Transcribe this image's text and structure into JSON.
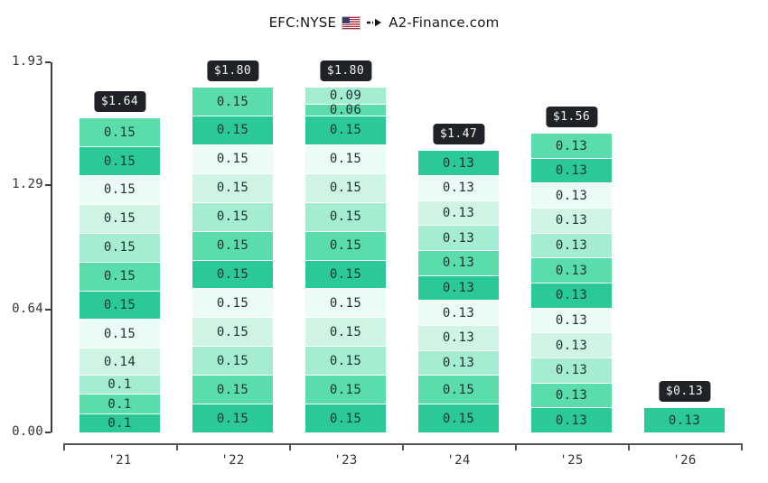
{
  "title": {
    "ticker": "EFC:NYSE",
    "site": "A2-Finance.com",
    "flag_icon": "us-flag",
    "arrow_icon": "arrow-right"
  },
  "colors": {
    "segment_text": "#1c3136",
    "total_label_bg": "#1f2227",
    "total_label_text": "#f5f5f5",
    "y_axis": "#3c3c3c",
    "x_axis": "#555555",
    "tick_label": "#333333"
  },
  "chart_data": {
    "type": "bar",
    "stacked": true,
    "title": "EFC:NYSE 🇺🇸 ➡ A2-Finance.com",
    "xlabel": "",
    "ylabel": "",
    "grid": false,
    "legend": false,
    "ylim": [
      0,
      1.93
    ],
    "yticks": [
      {
        "value": 0.0,
        "label": "0.00"
      },
      {
        "value": 0.64,
        "label": "0.64"
      },
      {
        "value": 1.29,
        "label": "1.29"
      },
      {
        "value": 1.93,
        "label": "1.93"
      }
    ],
    "categories": [
      "'21",
      "'22",
      "'23",
      "'24",
      "'25",
      "'26"
    ],
    "palette_bottom_up_cycle": [
      "#2cc998",
      "#5adcab",
      "#a4edd0",
      "#cef5e4",
      "#eafcf4"
    ],
    "bars": [
      {
        "category": "'21",
        "total": 1.64,
        "total_label": "$1.64",
        "segments": [
          0.1,
          0.1,
          0.1,
          0.14,
          0.15,
          0.15,
          0.15,
          0.15,
          0.15,
          0.15,
          0.15,
          0.15
        ],
        "segment_labels": [
          "0.1",
          "0.1",
          "0.1",
          "0.14",
          "0.15",
          "0.15",
          "0.15",
          "0.15",
          "0.15",
          "0.15",
          "0.15",
          "0.15"
        ]
      },
      {
        "category": "'22",
        "total": 1.8,
        "total_label": "$1.80",
        "segments": [
          0.15,
          0.15,
          0.15,
          0.15,
          0.15,
          0.15,
          0.15,
          0.15,
          0.15,
          0.15,
          0.15,
          0.15
        ],
        "segment_labels": [
          "0.15",
          "0.15",
          "0.15",
          "0.15",
          "0.15",
          "0.15",
          "0.15",
          "0.15",
          "0.15",
          "0.15",
          "0.15",
          "0.15"
        ]
      },
      {
        "category": "'23",
        "total": 1.8,
        "total_label": "$1.80",
        "segments": [
          0.15,
          0.15,
          0.15,
          0.15,
          0.15,
          0.15,
          0.15,
          0.15,
          0.15,
          0.15,
          0.15,
          0.06,
          0.09
        ],
        "segment_labels": [
          "0.15",
          "0.15",
          "0.15",
          "0.15",
          "0.15",
          "0.15",
          "0.15",
          "0.15",
          "0.15",
          "0.15",
          "0.15",
          "0.06",
          "0.09"
        ]
      },
      {
        "category": "'24",
        "total": 1.47,
        "total_label": "$1.47",
        "segments": [
          0.15,
          0.15,
          0.13,
          0.13,
          0.13,
          0.13,
          0.13,
          0.13,
          0.13,
          0.13,
          0.13
        ],
        "segment_labels": [
          "0.15",
          "0.15",
          "0.13",
          "0.13",
          "0.13",
          "0.13",
          "0.13",
          "0.13",
          "0.13",
          "0.13",
          "0.13"
        ]
      },
      {
        "category": "'25",
        "total": 1.56,
        "total_label": "$1.56",
        "segments": [
          0.13,
          0.13,
          0.13,
          0.13,
          0.13,
          0.13,
          0.13,
          0.13,
          0.13,
          0.13,
          0.13,
          0.13
        ],
        "segment_labels": [
          "0.13",
          "0.13",
          "0.13",
          "0.13",
          "0.13",
          "0.13",
          "0.13",
          "0.13",
          "0.13",
          "0.13",
          "0.13",
          "0.13"
        ]
      },
      {
        "category": "'26",
        "total": 0.13,
        "total_label": "$0.13",
        "segments": [
          0.13
        ],
        "segment_labels": [
          "0.13"
        ]
      }
    ]
  }
}
